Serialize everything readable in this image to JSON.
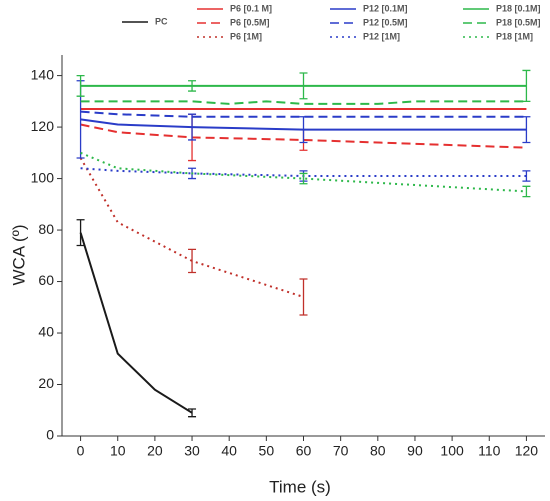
{
  "chart_data": {
    "type": "line",
    "x_label": "Time (s)",
    "y_label": "WCA (º)",
    "xlim": [
      -5,
      125
    ],
    "ylim": [
      0,
      148
    ],
    "xticks": [
      0,
      10,
      20,
      30,
      40,
      50,
      60,
      70,
      80,
      90,
      100,
      110,
      120
    ],
    "yticks": [
      0,
      20,
      40,
      60,
      80,
      100,
      120,
      140
    ],
    "series": [
      {
        "name": "PC",
        "color": "#1a1a1a",
        "dash": "solid",
        "x": [
          0,
          10,
          20,
          30
        ],
        "values": [
          79,
          32,
          18,
          9
        ],
        "errors": [
          5,
          null,
          null,
          1.5
        ]
      },
      {
        "name": "P6 [0.1 M]",
        "color": "#e53030",
        "dash": "solid",
        "x": [
          0,
          30,
          60,
          120
        ],
        "values": [
          127,
          127,
          127,
          127
        ],
        "errors": [
          null,
          null,
          null,
          null
        ]
      },
      {
        "name": "P6 [0.5M]",
        "color": "#e53030",
        "dash": "dashed",
        "x": [
          0,
          10,
          30,
          60,
          120
        ],
        "values": [
          121,
          118,
          116,
          115,
          112
        ],
        "errors": [
          null,
          null,
          9,
          4,
          null
        ]
      },
      {
        "name": "P6 [1M]",
        "color": "#c0302a",
        "dash": "dotted",
        "x": [
          0,
          10,
          30,
          60
        ],
        "values": [
          108,
          83,
          68,
          54
        ],
        "errors": [
          null,
          null,
          4.5,
          7
        ]
      },
      {
        "name": "P12 [0.1M]",
        "color": "#2a3cc8",
        "dash": "solid",
        "x": [
          0,
          10,
          30,
          60,
          120
        ],
        "values": [
          123,
          121,
          120,
          119,
          119
        ],
        "errors": [
          15,
          null,
          5,
          5,
          5
        ]
      },
      {
        "name": "P12 [0.5M]",
        "color": "#2a3cc8",
        "dash": "dashed",
        "x": [
          0,
          10,
          30,
          60,
          120
        ],
        "values": [
          126,
          125,
          124,
          124,
          124
        ],
        "errors": [
          null,
          null,
          null,
          null,
          null
        ]
      },
      {
        "name": "P12 [1M]",
        "color": "#2a3cc8",
        "dash": "dotted",
        "x": [
          0,
          10,
          30,
          60,
          120
        ],
        "values": [
          104,
          103,
          102,
          101,
          101
        ],
        "errors": [
          null,
          null,
          2,
          2,
          2
        ]
      },
      {
        "name": "P18 [0.1M]",
        "color": "#2db84a",
        "dash": "solid",
        "x": [
          0,
          30,
          60,
          120
        ],
        "values": [
          136,
          136,
          136,
          136
        ],
        "errors": [
          4,
          2,
          5,
          6
        ]
      },
      {
        "name": "P18 [0.5M]",
        "color": "#2db84a",
        "dash": "dashed",
        "x": [
          0,
          10,
          20,
          30,
          40,
          50,
          60,
          70,
          80,
          90,
          100,
          110,
          120
        ],
        "values": [
          130,
          130,
          130,
          130,
          129,
          130,
          129,
          129,
          129,
          130,
          130,
          130,
          130
        ],
        "errors": [
          null,
          null,
          null,
          null,
          null,
          null,
          null,
          null,
          null,
          null,
          null,
          null,
          null
        ]
      },
      {
        "name": "P18 [1M]",
        "color": "#2db84a",
        "dash": "dotted",
        "x": [
          0,
          10,
          30,
          60,
          120
        ],
        "values": [
          110,
          104,
          102,
          100,
          95
        ],
        "errors": [
          null,
          null,
          null,
          2,
          2
        ]
      }
    ]
  }
}
